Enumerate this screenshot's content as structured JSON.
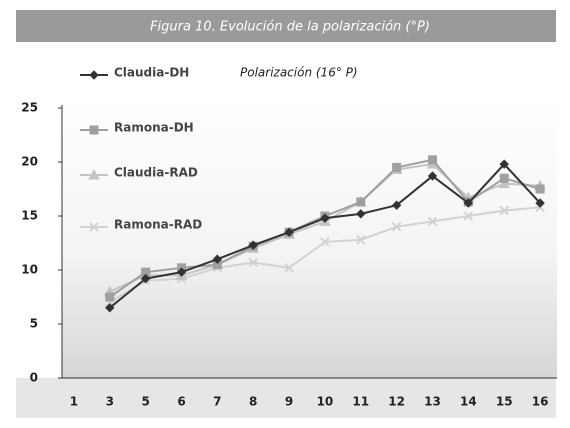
{
  "chart_data": {
    "type": "line",
    "title": "Figura 10. Evolución de la polarización (°P)",
    "subtitle": "Polarización (16° P)",
    "categories": [
      "1",
      "3",
      "5",
      "6",
      "7",
      "8",
      "9",
      "10",
      "11",
      "12",
      "13",
      "14",
      "15",
      "16"
    ],
    "series": [
      {
        "name": "Claudia-DH",
        "color": "#333333",
        "marker": "diamond",
        "values": [
          null,
          6.5,
          9.2,
          9.8,
          11,
          12.3,
          13.5,
          14.8,
          15.2,
          16,
          18.7,
          16.2,
          19.8,
          16.2
        ]
      },
      {
        "name": "Ramona-DH",
        "color": "#a0a0a0",
        "marker": "square",
        "values": [
          null,
          7.5,
          9.8,
          10.2,
          10.5,
          12.2,
          13.5,
          15,
          16.3,
          19.5,
          20.2,
          16.3,
          18.5,
          17.5
        ]
      },
      {
        "name": "Claudia-RAD",
        "color": "#c4c4c4",
        "marker": "triangle",
        "values": [
          null,
          8,
          9.5,
          9.5,
          10.5,
          12,
          13.3,
          14.5,
          16.3,
          19.3,
          19.8,
          16.7,
          18,
          17.8
        ]
      },
      {
        "name": "Ramona-RAD",
        "color": "#d2d2d2",
        "marker": "x",
        "values": [
          null,
          7,
          9,
          9.2,
          10.2,
          10.7,
          10.2,
          12.6,
          12.8,
          14,
          14.5,
          15,
          15.5,
          15.8
        ]
      }
    ],
    "ylim": [
      0,
      25
    ],
    "yticks": [
      0,
      5,
      10,
      15,
      20,
      25
    ],
    "grid": false
  }
}
